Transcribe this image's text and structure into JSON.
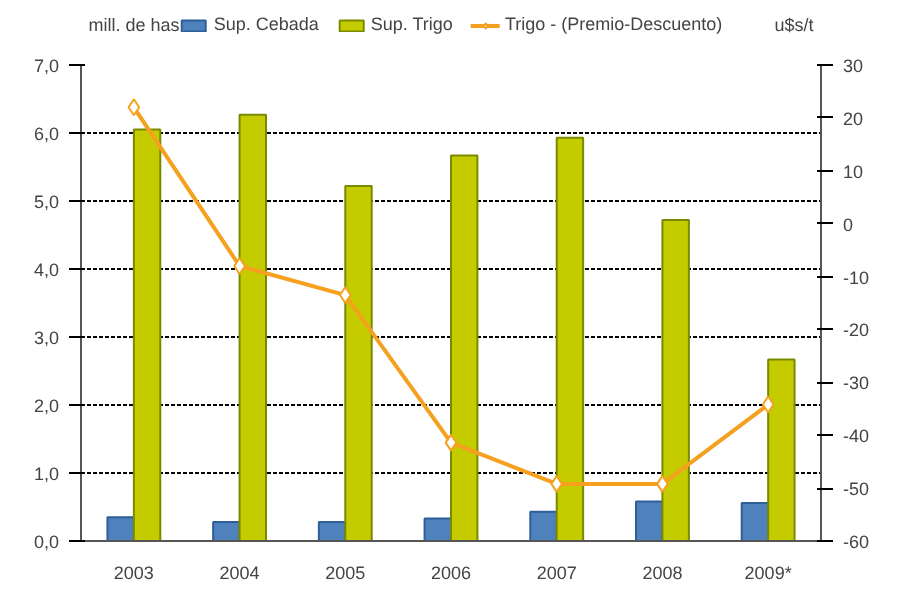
{
  "chart_data": {
    "type": "bar",
    "categories": [
      "2003",
      "2004",
      "2005",
      "2006",
      "2007",
      "2008",
      "2009*"
    ],
    "ylabel": "mill. de has",
    "y2label": "u$s/t",
    "series": [
      {
        "name": "Sup. Cebada",
        "color": "#4f81bd",
        "values": [
          0.35,
          0.28,
          0.28,
          0.33,
          0.43,
          0.58,
          0.56
        ]
      },
      {
        "name": "Sup. Trigo",
        "color": "#c4cc00",
        "values": [
          6.05,
          6.27,
          5.22,
          5.67,
          5.93,
          4.72,
          2.67
        ]
      },
      {
        "name": "Trigo - (Premio-Descuento)",
        "type": "line",
        "axis": "y2",
        "color": "#f5a01e",
        "marker": "diamond",
        "values": [
          22,
          -8,
          -13.5,
          -41.4,
          -49.2,
          -49.2,
          -34.2
        ]
      }
    ],
    "ylim": [
      0,
      7
    ],
    "yticks": [
      {
        "value": 0,
        "label": "0,0"
      },
      {
        "value": 1,
        "label": "1,0"
      },
      {
        "value": 2,
        "label": "2,0"
      },
      {
        "value": 3,
        "label": "3,0"
      },
      {
        "value": 4,
        "label": "4,0"
      },
      {
        "value": 5,
        "label": "5,0"
      },
      {
        "value": 6,
        "label": "6,0"
      },
      {
        "value": 7,
        "label": "7,0"
      }
    ],
    "y2lim": [
      -60,
      30
    ],
    "y2ticks": [
      -60,
      -50,
      -40,
      -30,
      -20,
      -10,
      0,
      10,
      20,
      30
    ],
    "grid": "y",
    "legend": "top",
    "line_style": "solid"
  }
}
